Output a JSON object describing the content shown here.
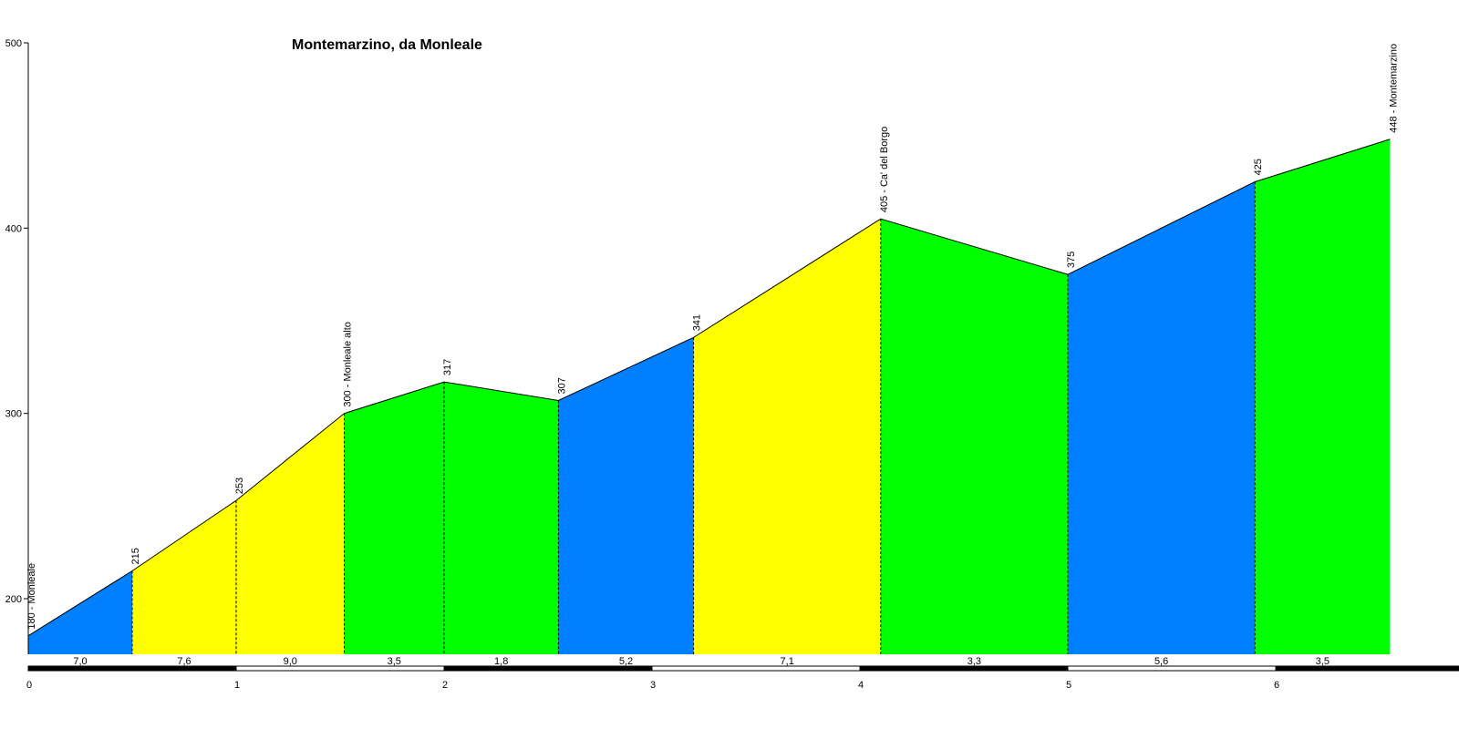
{
  "chart_data": {
    "type": "area",
    "title": "Montemarzino, da Monleale",
    "xlabel": "",
    "ylabel": "",
    "xlim": [
      0,
      6.97
    ],
    "ylim": [
      170,
      500
    ],
    "yticks": [
      "200",
      "300",
      "400",
      "500"
    ],
    "xticks": [
      "0",
      "1",
      "2",
      "3",
      "4",
      "5",
      "6"
    ],
    "points": [
      {
        "x": 0.0,
        "y": 180,
        "label": "180 - Monleale"
      },
      {
        "x": 0.5,
        "y": 215,
        "label": "215"
      },
      {
        "x": 1.0,
        "y": 253,
        "label": "253"
      },
      {
        "x": 1.52,
        "y": 300,
        "label": "300 - Monleale alto"
      },
      {
        "x": 2.0,
        "y": 317,
        "label": "317"
      },
      {
        "x": 2.55,
        "y": 307,
        "label": "307"
      },
      {
        "x": 3.2,
        "y": 341,
        "label": "341"
      },
      {
        "x": 4.1,
        "y": 405,
        "label": "405 - Ca' del Borgo"
      },
      {
        "x": 5.0,
        "y": 375,
        "label": "375"
      },
      {
        "x": 5.9,
        "y": 425,
        "label": "425"
      },
      {
        "x": 6.55,
        "y": 448,
        "label": "448 - Montemarzino"
      }
    ],
    "segments": [
      {
        "grade": "7,0",
        "color": "#0080ff"
      },
      {
        "grade": "7,6",
        "color": "#ffff00"
      },
      {
        "grade": "9,0",
        "color": "#ffff00"
      },
      {
        "grade": "3,5",
        "color": "#00ff00"
      },
      {
        "grade": "1,8",
        "color": "#00ff00"
      },
      {
        "grade": "5,2",
        "color": "#0080ff"
      },
      {
        "grade": "7,1",
        "color": "#ffff00"
      },
      {
        "grade": "3,3",
        "color": "#00ff00"
      },
      {
        "grade": "5,6",
        "color": "#0080ff"
      },
      {
        "grade": "3,5",
        "color": "#00ff00"
      }
    ]
  }
}
